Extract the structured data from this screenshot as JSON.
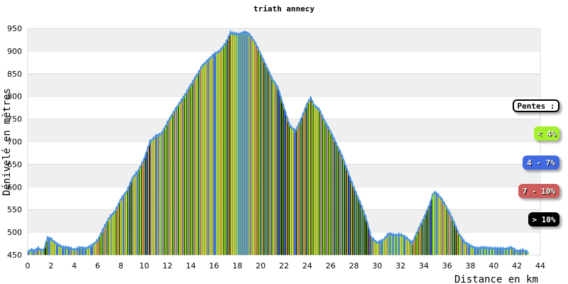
{
  "chart_data": {
    "type": "area",
    "title": "triath annecy",
    "xlabel": "Distance en km",
    "ylabel": "Dénivelé en mètres",
    "xlim": [
      0,
      44
    ],
    "ylim": [
      450,
      950
    ],
    "xticks": [
      "0",
      "2",
      "4",
      "6",
      "8",
      "10",
      "12",
      "14",
      "16",
      "18",
      "20",
      "22",
      "24",
      "26",
      "28",
      "30",
      "32",
      "34",
      "36",
      "38",
      "40",
      "42",
      "44"
    ],
    "yticks": [
      "450",
      "500",
      "550",
      "600",
      "650",
      "700",
      "750",
      "800",
      "850",
      "900",
      "950"
    ],
    "grid": true,
    "legend_position": "right",
    "legend": {
      "title": "Pentes :",
      "entries": [
        {
          "label": "< 4%",
          "color": "#a4f02e"
        },
        {
          "label": "4 - 7%",
          "color": "#4169e1"
        },
        {
          "label": "7 - 10%",
          "color": "#cd5c5c"
        },
        {
          "label": "> 10%",
          "color": "#000000"
        }
      ]
    },
    "profile": [
      [
        0,
        455
      ],
      [
        0.3,
        462
      ],
      [
        0.6,
        458
      ],
      [
        0.9,
        465
      ],
      [
        1.2,
        460
      ],
      [
        1.4,
        462
      ],
      [
        1.7,
        488
      ],
      [
        2.0,
        485
      ],
      [
        2.5,
        474
      ],
      [
        3.0,
        467
      ],
      [
        3.5,
        466
      ],
      [
        4.0,
        461
      ],
      [
        4.5,
        466
      ],
      [
        5.0,
        464
      ],
      [
        5.5,
        470
      ],
      [
        6.0,
        482
      ],
      [
        6.5,
        508
      ],
      [
        7.0,
        532
      ],
      [
        7.5,
        546
      ],
      [
        8.0,
        573
      ],
      [
        8.5,
        590
      ],
      [
        9.0,
        620
      ],
      [
        9.5,
        636
      ],
      [
        10.0,
        662
      ],
      [
        10.5,
        700
      ],
      [
        11.0,
        712
      ],
      [
        11.5,
        718
      ],
      [
        12.0,
        742
      ],
      [
        12.5,
        764
      ],
      [
        13.0,
        784
      ],
      [
        13.5,
        803
      ],
      [
        14.0,
        825
      ],
      [
        14.5,
        846
      ],
      [
        15.0,
        868
      ],
      [
        15.5,
        880
      ],
      [
        16.0,
        893
      ],
      [
        16.5,
        900
      ],
      [
        17.0,
        918
      ],
      [
        17.4,
        940
      ],
      [
        17.8,
        938
      ],
      [
        18.2,
        937
      ],
      [
        18.6,
        942
      ],
      [
        19.0,
        938
      ],
      [
        19.5,
        920
      ],
      [
        20.0,
        893
      ],
      [
        20.5,
        866
      ],
      [
        21.0,
        838
      ],
      [
        21.5,
        818
      ],
      [
        22.0,
        775
      ],
      [
        22.5,
        735
      ],
      [
        23.0,
        723
      ],
      [
        23.5,
        752
      ],
      [
        24.0,
        785
      ],
      [
        24.3,
        797
      ],
      [
        24.6,
        780
      ],
      [
        25.0,
        772
      ],
      [
        25.5,
        745
      ],
      [
        26.0,
        722
      ],
      [
        26.5,
        695
      ],
      [
        27.0,
        668
      ],
      [
        27.5,
        632
      ],
      [
        28.0,
        598
      ],
      [
        28.5,
        568
      ],
      [
        29.0,
        535
      ],
      [
        29.5,
        488
      ],
      [
        30.0,
        477
      ],
      [
        30.5,
        482
      ],
      [
        31.0,
        497
      ],
      [
        31.5,
        493
      ],
      [
        32.0,
        495
      ],
      [
        32.5,
        488
      ],
      [
        33.0,
        476
      ],
      [
        33.5,
        504
      ],
      [
        34.0,
        531
      ],
      [
        34.5,
        561
      ],
      [
        34.8,
        586
      ],
      [
        35.0,
        588
      ],
      [
        35.5,
        575
      ],
      [
        36.0,
        553
      ],
      [
        36.5,
        528
      ],
      [
        37.0,
        497
      ],
      [
        37.5,
        478
      ],
      [
        38.0,
        470
      ],
      [
        38.5,
        464
      ],
      [
        39.0,
        466
      ],
      [
        39.5,
        465
      ],
      [
        40.0,
        464
      ],
      [
        40.5,
        464
      ],
      [
        41.0,
        463
      ],
      [
        41.5,
        466
      ],
      [
        42.0,
        458
      ],
      [
        42.5,
        460
      ],
      [
        43.0,
        456
      ]
    ]
  }
}
